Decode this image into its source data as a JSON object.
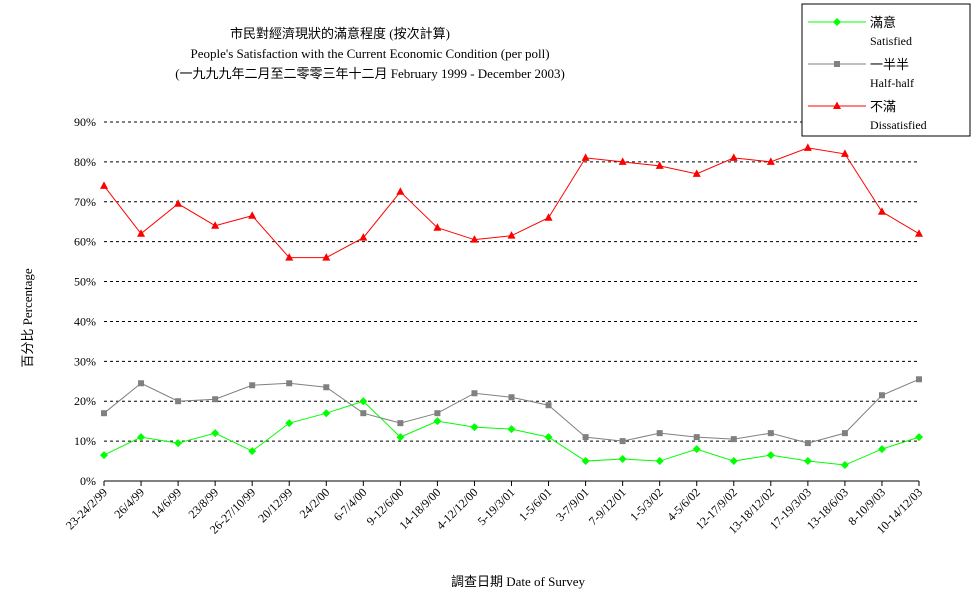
{
  "chart_data": {
    "type": "line",
    "title": "市民對經濟現狀的滿意程度 (按次計算)",
    "subtitle": "People's Satisfaction with the Current Economic Condition  (per poll)",
    "subtitle2": "(一九九九年二月至二零零三年十二月 February 1999 - December 2003)",
    "xlabel": "調查日期 Date of Survey",
    "ylabel": "百分比 Percentage",
    "ylim": [
      0,
      90
    ],
    "yticks": [
      "0%",
      "10%",
      "20%",
      "30%",
      "40%",
      "50%",
      "60%",
      "70%",
      "80%",
      "90%"
    ],
    "grid": true,
    "legend_position": "top-right",
    "categories": [
      "23-24/2/99",
      "26/4/99",
      "14/6/99",
      "23/8/99",
      "26-27/10/99",
      "20/12/99",
      "24/2/00",
      "6-7/4/00",
      "9-12/6/00",
      "14-18/9/00",
      "4-12/12/00",
      "5-19/3/01",
      "1-5/6/01",
      "3-7/9/01",
      "7-9/12/01",
      "1-5/3/02",
      "4-5/6/02",
      "12-17/9/02",
      "13-18/12/02",
      "17-19/3/03",
      "13-18/6/03",
      "8-10/9/03",
      "10-14/12/03"
    ],
    "series": [
      {
        "name": "滿意",
        "name_en": "Satisfied",
        "color": "#00ff00",
        "marker": "diamond",
        "values": [
          6.5,
          11,
          9.5,
          12,
          7.5,
          14.5,
          17,
          20,
          11,
          15,
          13.5,
          13,
          11,
          5,
          5.5,
          5,
          8,
          5,
          6.5,
          5,
          4,
          8,
          11
        ]
      },
      {
        "name": "一半半",
        "name_en": "Half-half",
        "color": "#808080",
        "marker": "square",
        "values": [
          17,
          24.5,
          20,
          20.5,
          24,
          24.5,
          23.5,
          17,
          14.5,
          17,
          22,
          21,
          19,
          11,
          10,
          12,
          11,
          10.5,
          12,
          9.5,
          12,
          21.5,
          25.5
        ]
      },
      {
        "name": "不滿",
        "name_en": "Dissatisfied",
        "color": "#ff0000",
        "marker": "triangle",
        "values": [
          74,
          62,
          69.5,
          64,
          66.5,
          56,
          56,
          61,
          72.5,
          63.5,
          60.5,
          61.5,
          66,
          81,
          80,
          79,
          77,
          81,
          80,
          83.5,
          82,
          67.5,
          62
        ]
      }
    ]
  }
}
